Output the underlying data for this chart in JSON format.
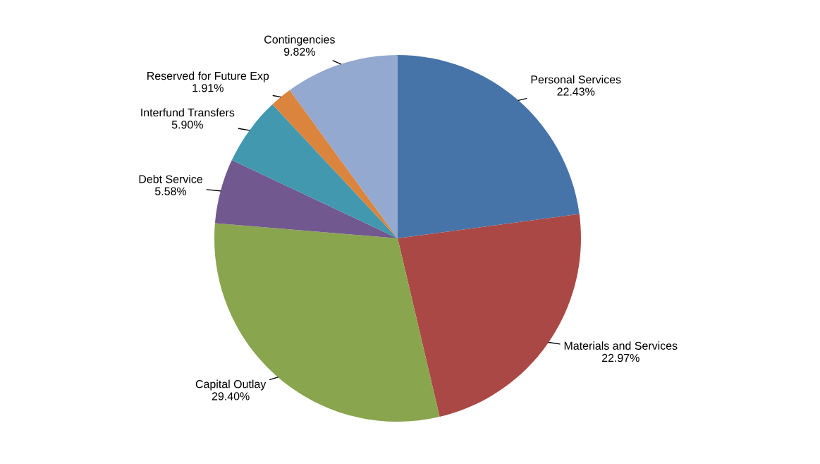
{
  "chart_data": {
    "type": "pie",
    "categories": [
      "Personal Services",
      "Materials and Services",
      "Capital Outlay",
      "Debt Service",
      "Interfund Transfers",
      "Reserved for Future Exp",
      "Contingencies"
    ],
    "values": [
      22.43,
      22.97,
      29.4,
      5.58,
      5.9,
      1.91,
      9.82
    ],
    "value_labels": [
      "22.43%",
      "22.97%",
      "29.40%",
      "5.58%",
      "5.90%",
      "1.91%",
      "9.82%"
    ],
    "colors": [
      "#4674a8",
      "#aa4845",
      "#89a54e",
      "#71588f",
      "#4198af",
      "#db843d",
      "#93a9cf"
    ]
  }
}
